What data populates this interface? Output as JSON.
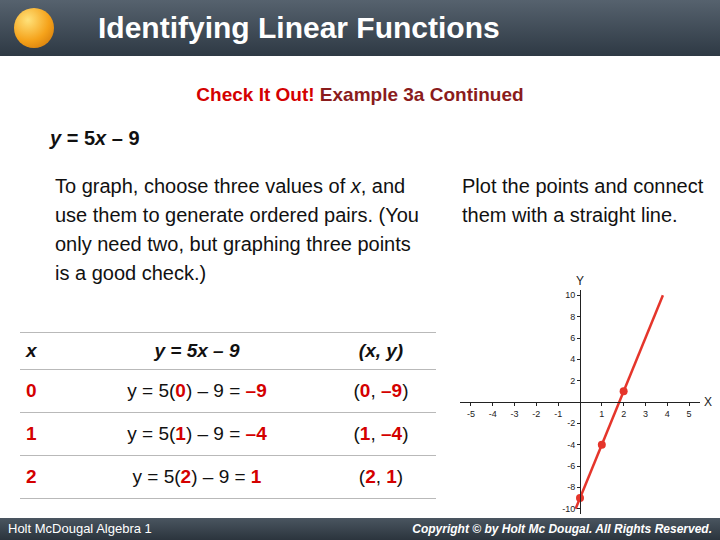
{
  "header": {
    "title": "Identifying Linear Functions"
  },
  "subtitle": {
    "lead": "Check It Out!",
    "rest": " Example 3a Continued"
  },
  "equation": [
    "y",
    " = 5",
    "x",
    " – 9"
  ],
  "instructions": [
    "To graph, choose three values of ",
    "x",
    ", and use them to generate ordered pairs. (You only need two, but graphing three points is a good check.)"
  ],
  "plot_instructions": "Plot the points and connect them with a straight line.",
  "table": {
    "header": [
      "x",
      "y = 5x – 9",
      "(x, y)"
    ],
    "rows": [
      {
        "x": "0",
        "expr": [
          "y = 5(",
          "0",
          ") – 9 = ",
          "–9"
        ],
        "pair": [
          "(",
          "0",
          ", ",
          "–9",
          ")"
        ]
      },
      {
        "x": "1",
        "expr": [
          "y = 5(",
          "1",
          ") – 9 = ",
          "–4"
        ],
        "pair": [
          "(",
          "1",
          ", ",
          "–4",
          ")"
        ]
      },
      {
        "x": "2",
        "expr": [
          "y = 5(",
          "2",
          ") – 9 = ",
          "1"
        ],
        "pair": [
          "(",
          "2",
          ", ",
          "1",
          ")"
        ]
      }
    ]
  },
  "chart_data": {
    "type": "line",
    "x_label": "X",
    "y_label": "Y",
    "xlim": [
      -5.5,
      5.5
    ],
    "ylim": [
      -10.5,
      10.5
    ],
    "xticks": [
      -5,
      -4,
      -3,
      -2,
      -1,
      1,
      2,
      3,
      4,
      5
    ],
    "yticks": [
      10,
      8,
      6,
      4,
      2,
      -2,
      -4,
      -6,
      -8,
      -10
    ],
    "grid": false,
    "series": [
      {
        "type": "line",
        "color": "#e5352b",
        "x": [
          -0.2,
          3.8
        ],
        "values": [
          -10,
          10
        ]
      },
      {
        "type": "scatter",
        "color": "#e5352b",
        "marker": "circle",
        "x": [
          0,
          1,
          2
        ],
        "values": [
          -9,
          -4,
          1
        ]
      }
    ]
  },
  "footer": {
    "left": "Holt McDougal Algebra 1",
    "right": "Copyright © by Holt Mc Dougal. All Rights Reserved."
  }
}
